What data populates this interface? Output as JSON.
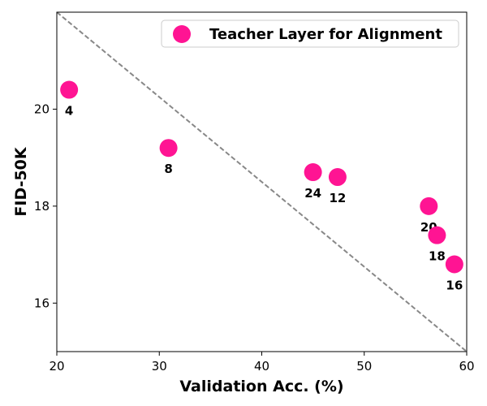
{
  "chart_data": {
    "type": "scatter",
    "xlabel": "Validation Acc. (%)",
    "ylabel": "FID-50K",
    "xlim": [
      20,
      60
    ],
    "ylim": [
      15,
      22
    ],
    "xticks": [
      20,
      30,
      40,
      50,
      60
    ],
    "yticks": [
      16,
      18,
      20
    ],
    "grid": false,
    "legend_position": "top-right",
    "series": [
      {
        "name": "Teacher Layer for Alignment",
        "color": "#ff1493",
        "points": [
          {
            "x": 21.2,
            "y": 20.4,
            "label": "4"
          },
          {
            "x": 30.9,
            "y": 19.2,
            "label": "8"
          },
          {
            "x": 45.0,
            "y": 18.7,
            "label": "24"
          },
          {
            "x": 47.4,
            "y": 18.6,
            "label": "12"
          },
          {
            "x": 56.3,
            "y": 18.0,
            "label": "20"
          },
          {
            "x": 57.1,
            "y": 17.4,
            "label": "18"
          },
          {
            "x": 58.8,
            "y": 16.8,
            "label": "16"
          }
        ]
      }
    ],
    "trend_line": {
      "from": [
        20,
        22
      ],
      "to": [
        60,
        15
      ],
      "style": "dashed",
      "color": "#888888"
    }
  }
}
